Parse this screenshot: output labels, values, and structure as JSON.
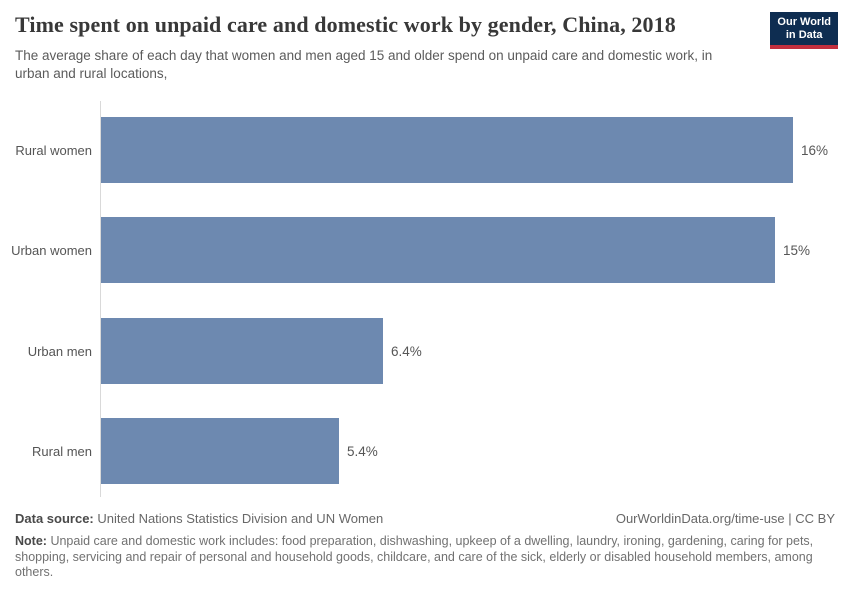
{
  "header": {
    "title": "Time spent on unpaid care and domestic work by gender, China, 2018",
    "subtitle": "The average share of each day that women and men aged 15 and older spend on unpaid care and domestic work, in urban and rural locations,",
    "logo": {
      "line1": "Our World",
      "line2": "in Data",
      "bg_color": "#0e2d51",
      "stripe_color": "#c22f3e"
    }
  },
  "chart_data": {
    "type": "bar",
    "orientation": "horizontal",
    "title": "Time spent on unpaid care and domestic work by gender, China, 2018",
    "categories": [
      "Rural women",
      "Urban women",
      "Urban men",
      "Rural men"
    ],
    "values": [
      15.7,
      15.3,
      6.4,
      5.4
    ],
    "value_labels": [
      "16%",
      "15%",
      "6.4%",
      "5.4%"
    ],
    "unit": "%",
    "xlim": [
      0,
      16.8
    ],
    "grid": false,
    "legend": "none",
    "bar_color": "#6d89b0",
    "axis_line_color": "#d9d9d9"
  },
  "footer": {
    "data_source_label": "Data source:",
    "data_source": "United Nations Statistics Division and UN Women",
    "credit": "OurWorldinData.org/time-use | CC BY",
    "note_label": "Note:",
    "note": "Unpaid care and domestic work includes: food preparation, dishwashing, upkeep of a dwelling, laundry, ironing, gardening, caring for pets, shopping, servicing and repair of personal and household goods, childcare, and care of the sick, elderly or disabled household members, among others."
  }
}
